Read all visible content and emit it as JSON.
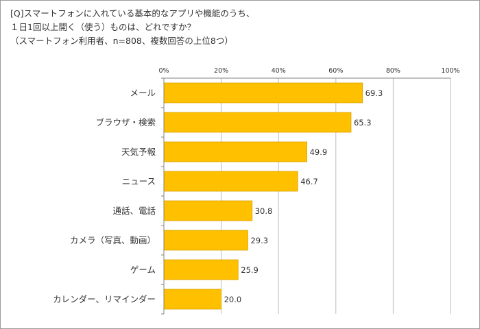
{
  "title_lines": [
    "[Q]スマートフォンに入れている基本的なアプリや機能のうち、",
    "１日1回以上開く（使う）ものは、どれですか？",
    "（スマートフォン利用者、n=808、複数回答の上位8つ）"
  ],
  "chart_data": {
    "type": "bar",
    "orientation": "horizontal",
    "categories": [
      "メール",
      "ブラウザ・検索",
      "天気予報",
      "ニュース",
      "通話、電話",
      "カメラ（写真、動画）",
      "ゲーム",
      "カレンダー、リマインダー"
    ],
    "values": [
      69.3,
      65.3,
      49.9,
      46.7,
      30.8,
      29.3,
      25.9,
      20.0
    ],
    "value_labels": [
      "69.3",
      "65.3",
      "49.9",
      "46.7",
      "30.8",
      "29.3",
      "25.9",
      "20.0"
    ],
    "xlim": [
      0,
      100
    ],
    "x_ticks": [
      0,
      20,
      40,
      60,
      80,
      100
    ],
    "x_tick_labels": [
      "0%",
      "20%",
      "40%",
      "60%",
      "80%",
      "100%"
    ],
    "grid": true,
    "colors": {
      "bar": "#FFC000",
      "bar_edge": "#D9A400",
      "grid": "#bdbdbd",
      "axis": "#808080"
    }
  }
}
